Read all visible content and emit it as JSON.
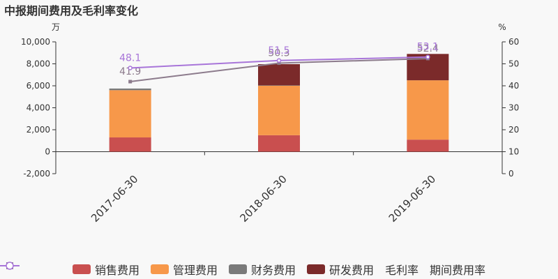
{
  "title": "中报期间费用及毛利率变化",
  "chart_data": {
    "type": "bar",
    "stacked": true,
    "categories": [
      "2017-06-30",
      "2018-06-30",
      "2019-06-30"
    ],
    "left_axis": {
      "unit": "万",
      "min": -2000,
      "max": 10000,
      "ticks": [
        10000,
        8000,
        6000,
        4000,
        2000,
        0,
        -2000
      ],
      "tick_labels": [
        "10,000",
        "8,000",
        "6,000",
        "4,000",
        "2,000",
        "0",
        "-2,000"
      ]
    },
    "right_axis": {
      "unit": "%",
      "min": 0,
      "max": 60,
      "ticks": [
        60,
        50,
        40,
        30,
        20,
        10,
        0
      ],
      "tick_labels": [
        "60",
        "50",
        "40",
        "30",
        "20",
        "10",
        "0"
      ]
    },
    "series": [
      {
        "name": "销售费用",
        "color": "#c94f4f",
        "values": [
          1300,
          1500,
          1100
        ]
      },
      {
        "name": "管理费用",
        "color": "#f7984a",
        "values": [
          4300,
          4500,
          5400
        ]
      },
      {
        "name": "财务费用",
        "color": "#7a7a7a",
        "values": [
          150,
          40,
          0
        ]
      },
      {
        "name": "研发费用",
        "color": "#7b2a2a",
        "values": [
          0,
          1930,
          2400
        ]
      }
    ],
    "lines": [
      {
        "name": "毛利率",
        "color": "#8c7b8c",
        "marker": "square",
        "values": [
          41.9,
          50.3,
          52.4
        ],
        "labels": [
          "41.9",
          "50.3",
          "52.4"
        ]
      },
      {
        "name": "期间费用率",
        "color": "#a875d9",
        "marker": "circle",
        "values": [
          48.1,
          51.5,
          53.1
        ],
        "labels": [
          "48.1",
          "51.5",
          "53.1"
        ]
      }
    ],
    "legend_position": "bottom"
  }
}
